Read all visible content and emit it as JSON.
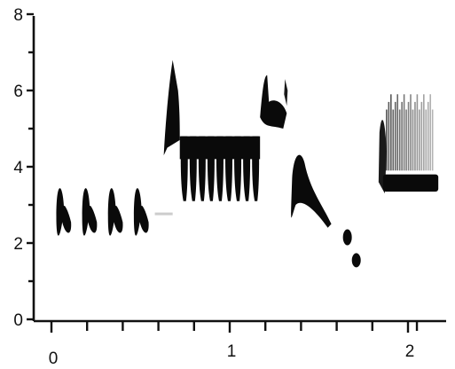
{
  "chart_data": {
    "type": "spectrogram",
    "title": "",
    "xlabel": "",
    "ylabel": "",
    "xlim": [
      -0.05,
      2.1
    ],
    "ylim": [
      0,
      8
    ],
    "x_major_ticks": [
      0,
      1,
      2
    ],
    "x_tick_labels": [
      "0",
      "1",
      "2"
    ],
    "x_minor_ticks": [
      0.2,
      0.4,
      0.6,
      0.8,
      1.2,
      1.4,
      1.6,
      1.8,
      2.05
    ],
    "y_major_ticks": [
      0,
      2,
      4,
      6,
      8
    ],
    "y_tick_labels": [
      "0",
      "2",
      "4",
      "6",
      "8"
    ],
    "y_minor_ticks": [
      1,
      3,
      5,
      7
    ],
    "grid": false,
    "syllables": [
      {
        "kind": "notes",
        "x_start": 0.02,
        "x_end": 0.6,
        "count": 4,
        "f_low": 2.0,
        "f_high": 3.6
      },
      {
        "kind": "upsweep",
        "x_start": 0.63,
        "x_end": 0.72,
        "f_low": 4.3,
        "f_high": 6.8
      },
      {
        "kind": "trill",
        "x_start": 0.72,
        "x_end": 1.17,
        "count": 9,
        "f_low": 3.1,
        "f_high": 4.9
      },
      {
        "kind": "upsweep",
        "x_start": 1.17,
        "x_end": 1.32,
        "f_low": 5.0,
        "f_high": 6.4
      },
      {
        "kind": "downsweep",
        "x_start": 1.35,
        "x_end": 1.57,
        "f_low": 2.4,
        "f_high": 4.4
      },
      {
        "kind": "notes",
        "x_start": 1.64,
        "x_end": 1.72,
        "count": 2,
        "f_low": 1.3,
        "f_high": 2.4
      },
      {
        "kind": "buzz",
        "x_start": 1.84,
        "x_end": 2.17,
        "f_low": 3.1,
        "f_high": 6.0
      }
    ]
  }
}
